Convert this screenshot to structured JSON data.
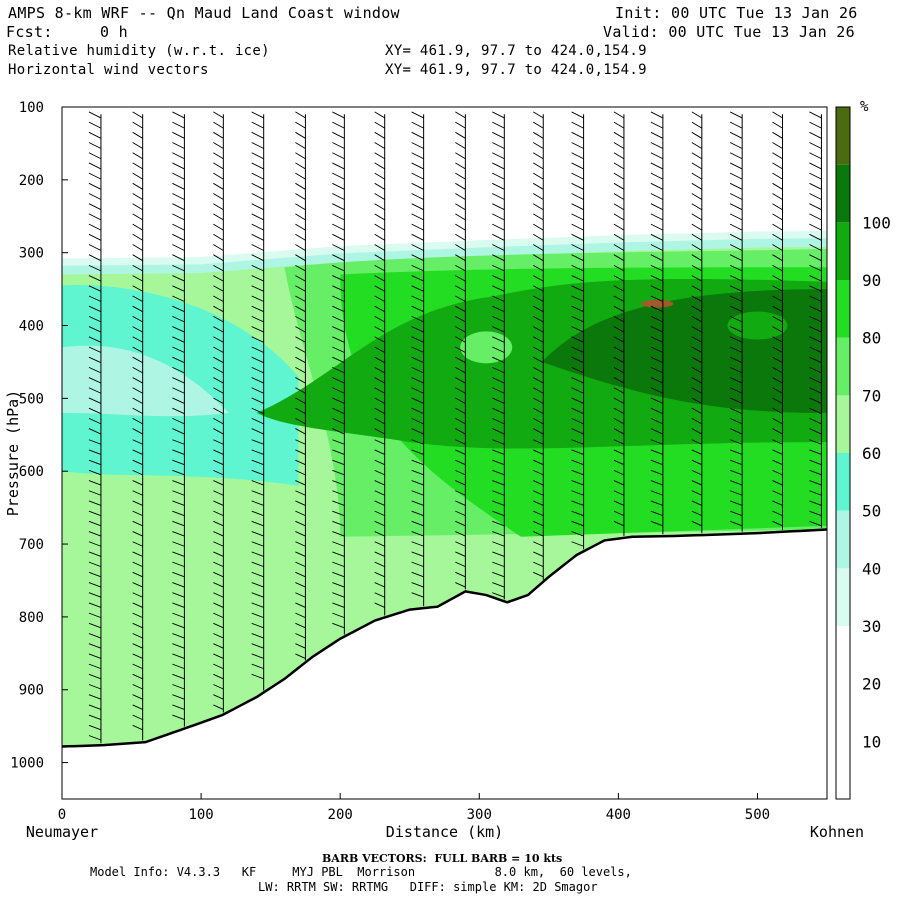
{
  "header": {
    "title": "AMPS 8-km WRF -- Qn Maud Land Coast window",
    "fcst_label": "Fcst:",
    "fcst_value": "0 h",
    "init": "Init: 00 UTC Tue 13 Jan 26",
    "valid": "Valid: 00 UTC Tue 13 Jan 26",
    "field1": "Relative humidity (w.r.t. ice)",
    "field1_xy": "XY= 461.9, 97.7 to 424.0,154.9",
    "field2": "Horizontal wind vectors",
    "field2_xy": "XY= 461.9, 97.7 to 424.0,154.9"
  },
  "footer": {
    "barb": "BARB VECTORS:  FULL BARB = 10 kts",
    "model1": "Model Info: V4.3.3   KF     MYJ PBL  Morrison           8.0 km,  60 levels,",
    "model2": "LW: RRTM SW: RRTMG   DIFF: simple KM: 2D Smagor"
  },
  "chart_data": {
    "type": "heatmap",
    "title": "Relative humidity (w.r.t. ice)",
    "xlabel": "Distance (km)",
    "ylabel": "Pressure (hPa)",
    "xlim": [
      0,
      550
    ],
    "ylim": [
      1050,
      100
    ],
    "x_ticks": [
      0,
      100,
      200,
      300,
      400,
      500
    ],
    "y_ticks": [
      100,
      200,
      300,
      400,
      500,
      600,
      700,
      800,
      900,
      1000
    ],
    "x_endpoints": [
      "Neumayer",
      "Kohnen"
    ],
    "colorbar": {
      "unit": "%",
      "levels": [
        10,
        20,
        30,
        40,
        50,
        60,
        70,
        80,
        90,
        100
      ],
      "colors": [
        "#ffffff",
        "#ffffff",
        "#ffffff",
        "#d9fbf0",
        "#aff5e3",
        "#5ef5d0",
        "#a6f79a",
        "#66ee66",
        "#22dd22",
        "#11aa11",
        "#0b780b",
        "#4a6b10"
      ]
    },
    "terrain_surface_hPa": {
      "x": [
        0,
        30,
        60,
        90,
        115,
        140,
        160,
        180,
        200,
        225,
        250,
        270,
        290,
        305,
        320,
        335,
        350,
        370,
        390,
        410,
        440,
        470,
        500,
        530,
        550
      ],
      "p": [
        978,
        976,
        972,
        952,
        935,
        910,
        885,
        855,
        830,
        805,
        790,
        786,
        765,
        770,
        780,
        770,
        745,
        715,
        695,
        690,
        689,
        687,
        685,
        682,
        680
      ]
    },
    "moist_top_hPa": {
      "x": [
        0,
        100,
        200,
        300,
        400,
        500,
        550
      ],
      "p": [
        320,
        318,
        303,
        295,
        288,
        283,
        282
      ]
    },
    "wind_columns_km": [
      28,
      58,
      88,
      116,
      145,
      175,
      203,
      232,
      260,
      290,
      318,
      346,
      375,
      404,
      432,
      460,
      489,
      518,
      546
    ]
  }
}
